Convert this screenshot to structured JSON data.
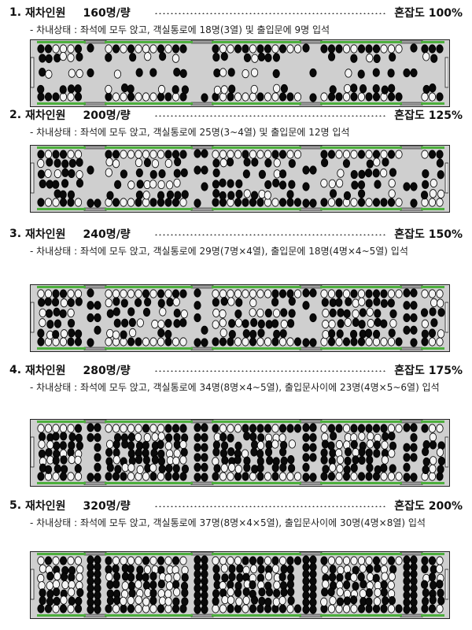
{
  "sections": [
    {
      "number": "1.",
      "label": "재차인원",
      "count": "160명/량",
      "congestion": "혼잡도 100%",
      "description": "- 차내상태 : 좌석에 모두 앉고, 객실통로에 18명(3열) 및 출입문에 9명 입석",
      "layout": {
        "door_rows": 3,
        "aisle_rows": 3,
        "aisle_fill": 0.55,
        "door_fill": 0.4
      }
    },
    {
      "number": "2.",
      "label": "재차인원",
      "count": "200명/량",
      "congestion": "혼잡도 125%",
      "description": "- 차내상태 : 좌석에 모두 앉고, 객실통로에 25명(3~4열) 및 출입문에 12명 입석",
      "layout": {
        "door_rows": 4,
        "aisle_rows": 4,
        "aisle_fill": 0.65,
        "door_fill": 0.5
      }
    },
    {
      "number": "3.",
      "label": "재차인원",
      "count": "240명/량",
      "congestion": "혼잡도 150%",
      "description": "- 차내상태 : 좌석에 모두 앉고, 객실통로에 29명(7명×4열), 출입문에 18명(4명×4~5열) 입석",
      "layout": {
        "door_rows": 5,
        "aisle_rows": 4,
        "aisle_fill": 0.8,
        "door_fill": 0.7
      }
    },
    {
      "number": "4.",
      "label": "재차인원",
      "count": "280명/량",
      "congestion": "혼잡도 175%",
      "description": "- 차내상태 : 좌석에 모두 앉고, 객실통로에 34명(8명×4~5열), 출입문사이에 23명(4명×5~6열) 입석",
      "layout": {
        "door_rows": 6,
        "aisle_rows": 5,
        "aisle_fill": 0.9,
        "door_fill": 0.8
      }
    },
    {
      "number": "5.",
      "label": "재차인원",
      "count": "320명/량",
      "congestion": "혼잡도 200%",
      "description": "- 차내상태 : 좌석에 모두 앉고, 객실통로에 37명(8명×4×5열), 출입문사이에 30명(4명×8열) 입석",
      "layout": {
        "door_rows": 8,
        "aisle_rows": 5,
        "aisle_fill": 1.0,
        "door_fill": 1.0
      }
    }
  ],
  "colors": {
    "car_body": "#cfcfcf",
    "seat_green": "#4caf3c",
    "door_grey": "#9a9a9a",
    "passenger_dark": "#0a0a0a",
    "passenger_light": "#f4f4f4",
    "outline": "#222222"
  }
}
